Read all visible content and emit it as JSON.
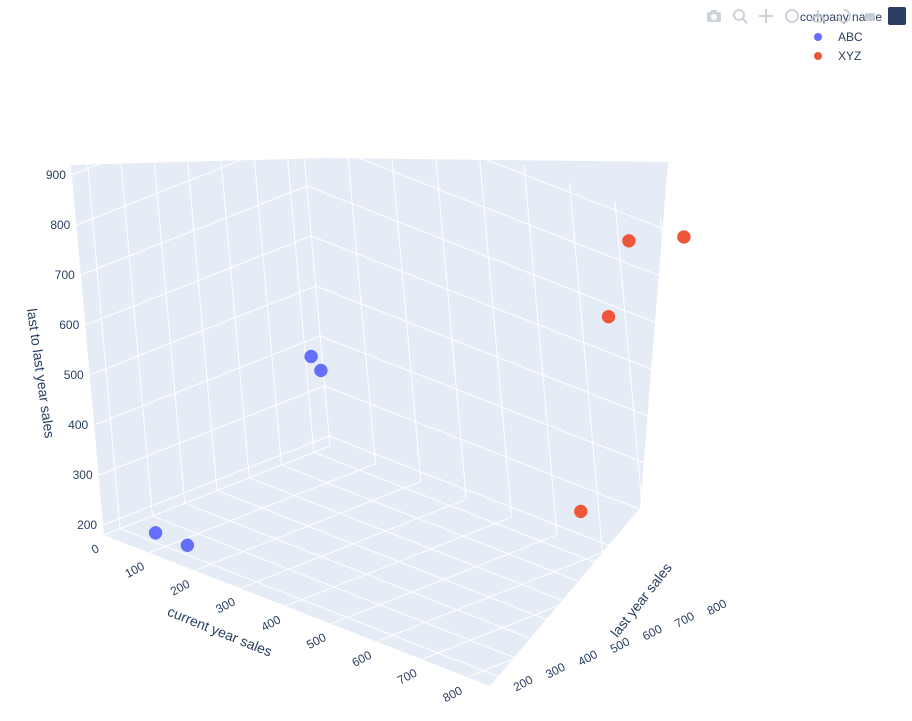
{
  "colors": {
    "abc": "#636efa",
    "xyz": "#ef553b",
    "scene_bg": "#e5ecf6",
    "grid": "#ffffff",
    "text": "#2a3f5f"
  },
  "modebar": {
    "icons": [
      "camera-icon",
      "zoom-icon",
      "pan-icon",
      "orbit-icon",
      "turntable-icon",
      "reset-camera-icon",
      "hover-icon",
      "plotly-logo-icon"
    ]
  },
  "chart_data": {
    "type": "scatter3d",
    "xlabel": "current year sales",
    "ylabel": "last year sales",
    "zlabel": "last to last year sales",
    "x_ticks": [
      "0",
      "100",
      "200",
      "300",
      "400",
      "500",
      "600",
      "700",
      "800"
    ],
    "y_ticks": [
      "200",
      "300",
      "400",
      "500",
      "600",
      "700",
      "800"
    ],
    "z_ticks": [
      "200",
      "300",
      "400",
      "500",
      "600",
      "700",
      "800",
      "900"
    ],
    "legend": {
      "title": "company name",
      "placement": "top-right"
    },
    "series": [
      {
        "name": "ABC",
        "color": "#636efa",
        "points": [
          {
            "x": 80,
            "y": 200,
            "z": 200
          },
          {
            "x": 150,
            "y": 200,
            "z": 200
          },
          {
            "x": 120,
            "y": 660,
            "z": 450
          },
          {
            "x": 170,
            "y": 620,
            "z": 450
          }
        ]
      },
      {
        "name": "XYZ",
        "color": "#ef553b",
        "points": [
          {
            "x": 780,
            "y": 560,
            "z": 400
          },
          {
            "x": 700,
            "y": 800,
            "z": 700
          },
          {
            "x": 800,
            "y": 750,
            "z": 900
          },
          {
            "x": 850,
            "y": 850,
            "z": 900
          }
        ]
      }
    ]
  }
}
